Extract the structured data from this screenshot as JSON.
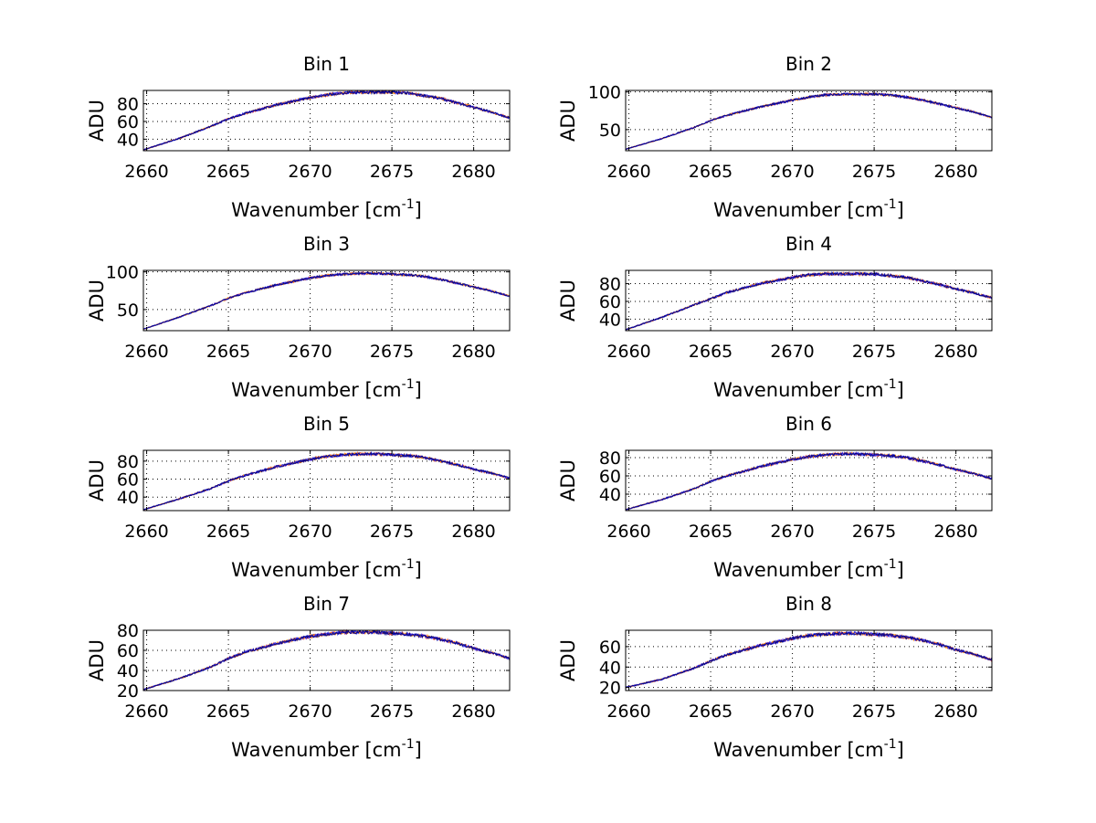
{
  "chart_data": [
    {
      "type": "line",
      "title": "Bin 1",
      "xlabel": "Wavenumber [cm",
      "xlabel_sup": "-1",
      "xlabel_end": "]",
      "ylabel": "ADU",
      "xlim": [
        2659.8,
        2682.2
      ],
      "ylim": [
        27,
        95
      ],
      "xticks": [
        2660,
        2665,
        2670,
        2675,
        2680
      ],
      "yticks": [
        40,
        60,
        80
      ],
      "grid": true,
      "series_colors": [
        "#e02020",
        "#ff8c00",
        "#1a1aff",
        "#000080"
      ],
      "x": [
        2659.8,
        2662,
        2664,
        2665,
        2666,
        2668,
        2670,
        2671,
        2672,
        2673,
        2674,
        2675,
        2676,
        2677,
        2678,
        2679,
        2680,
        2681,
        2682.2
      ],
      "values": [
        28,
        41,
        55,
        63,
        69,
        79,
        87,
        90,
        92,
        93,
        93,
        93,
        92,
        89,
        86,
        81,
        76,
        71,
        64
      ]
    },
    {
      "type": "line",
      "title": "Bin 2",
      "xlabel": "Wavenumber [cm",
      "xlabel_sup": "-1",
      "xlabel_end": "]",
      "ylabel": "ADU",
      "xlim": [
        2659.8,
        2682.2
      ],
      "ylim": [
        22,
        102
      ],
      "xticks": [
        2660,
        2665,
        2670,
        2675,
        2680
      ],
      "yticks": [
        50,
        100
      ],
      "grid": true,
      "series_colors": [
        "#e02020",
        "#ff8c00",
        "#1a1aff",
        "#000080"
      ],
      "x": [
        2659.8,
        2662,
        2664,
        2665,
        2666,
        2668,
        2670,
        2671,
        2672,
        2673,
        2674,
        2675,
        2676,
        2677,
        2678,
        2679,
        2680,
        2681,
        2682.2
      ],
      "values": [
        24,
        38,
        53,
        62,
        69,
        80,
        89,
        93,
        96,
        97,
        97,
        97,
        96,
        93,
        89,
        84,
        79,
        74,
        66
      ]
    },
    {
      "type": "line",
      "title": "Bin 3",
      "xlabel": "Wavenumber [cm",
      "xlabel_sup": "-1",
      "xlabel_end": "]",
      "ylabel": "ADU",
      "xlim": [
        2659.8,
        2682.2
      ],
      "ylim": [
        22,
        102
      ],
      "xticks": [
        2660,
        2665,
        2670,
        2675,
        2680
      ],
      "yticks": [
        50,
        100
      ],
      "grid": true,
      "series_colors": [
        "#e02020",
        "#ff8c00",
        "#1a1aff",
        "#000080"
      ],
      "x": [
        2659.8,
        2662,
        2664,
        2665,
        2666,
        2668,
        2670,
        2671,
        2672,
        2673,
        2674,
        2675,
        2676,
        2677,
        2678,
        2679,
        2680,
        2681,
        2682.2
      ],
      "values": [
        24,
        40,
        56,
        65,
        72,
        83,
        92,
        95,
        97,
        98,
        98,
        97,
        96,
        94,
        90,
        85,
        80,
        75,
        68
      ]
    },
    {
      "type": "line",
      "title": "Bin 4",
      "xlabel": "Wavenumber [cm",
      "xlabel_sup": "-1",
      "xlabel_end": "]",
      "ylabel": "ADU",
      "xlim": [
        2659.8,
        2682.2
      ],
      "ylim": [
        27,
        95
      ],
      "xticks": [
        2660,
        2665,
        2670,
        2675,
        2680
      ],
      "yticks": [
        40,
        60,
        80
      ],
      "grid": true,
      "series_colors": [
        "#e02020",
        "#ff8c00",
        "#1a1aff",
        "#000080"
      ],
      "x": [
        2659.8,
        2662,
        2664,
        2665,
        2666,
        2668,
        2670,
        2671,
        2672,
        2673,
        2674,
        2675,
        2676,
        2677,
        2678,
        2679,
        2680,
        2681,
        2682.2
      ],
      "values": [
        28,
        42,
        56,
        63,
        70,
        80,
        87,
        90,
        91,
        91,
        91,
        91,
        89,
        87,
        83,
        79,
        74,
        70,
        64
      ]
    },
    {
      "type": "line",
      "title": "Bin 5",
      "xlabel": "Wavenumber [cm",
      "xlabel_sup": "-1",
      "xlabel_end": "]",
      "ylabel": "ADU",
      "xlim": [
        2659.8,
        2682.2
      ],
      "ylim": [
        25,
        92
      ],
      "xticks": [
        2660,
        2665,
        2670,
        2675,
        2680
      ],
      "yticks": [
        40,
        60,
        80
      ],
      "grid": true,
      "series_colors": [
        "#e02020",
        "#ff8c00",
        "#1a1aff",
        "#000080"
      ],
      "x": [
        2659.8,
        2662,
        2664,
        2665,
        2666,
        2668,
        2670,
        2671,
        2672,
        2673,
        2674,
        2675,
        2676,
        2677,
        2678,
        2679,
        2680,
        2681,
        2682.2
      ],
      "values": [
        26,
        38,
        50,
        58,
        64,
        74,
        82,
        85,
        87,
        88,
        88,
        87,
        86,
        84,
        80,
        76,
        71,
        67,
        61
      ]
    },
    {
      "type": "line",
      "title": "Bin 6",
      "xlabel": "Wavenumber [cm",
      "xlabel_sup": "-1",
      "xlabel_end": "]",
      "ylabel": "ADU",
      "xlim": [
        2659.8,
        2682.2
      ],
      "ylim": [
        22,
        88
      ],
      "xticks": [
        2660,
        2665,
        2670,
        2675,
        2680
      ],
      "yticks": [
        40,
        60,
        80
      ],
      "grid": true,
      "series_colors": [
        "#e02020",
        "#ff8c00",
        "#1a1aff",
        "#000080"
      ],
      "x": [
        2659.8,
        2662,
        2664,
        2665,
        2666,
        2668,
        2670,
        2671,
        2672,
        2673,
        2674,
        2675,
        2676,
        2677,
        2678,
        2679,
        2680,
        2681,
        2682.2
      ],
      "values": [
        23,
        34,
        46,
        54,
        60,
        70,
        78,
        81,
        83,
        84,
        84,
        83,
        82,
        80,
        76,
        72,
        67,
        63,
        57
      ]
    },
    {
      "type": "line",
      "title": "Bin 7",
      "xlabel": "Wavenumber [cm",
      "xlabel_sup": "-1",
      "xlabel_end": "]",
      "ylabel": "ADU",
      "xlim": [
        2659.8,
        2682.2
      ],
      "ylim": [
        20,
        80
      ],
      "xticks": [
        2660,
        2665,
        2670,
        2675,
        2680
      ],
      "yticks": [
        20,
        40,
        60,
        80
      ],
      "grid": true,
      "series_colors": [
        "#e02020",
        "#ff8c00",
        "#1a1aff",
        "#000080"
      ],
      "x": [
        2659.8,
        2662,
        2664,
        2665,
        2666,
        2668,
        2670,
        2671,
        2672,
        2673,
        2674,
        2675,
        2676,
        2677,
        2678,
        2679,
        2680,
        2681,
        2682.2
      ],
      "values": [
        21,
        32,
        44,
        52,
        58,
        67,
        74,
        76,
        78,
        78,
        78,
        77,
        76,
        74,
        71,
        67,
        62,
        58,
        52
      ]
    },
    {
      "type": "line",
      "title": "Bin 8",
      "xlabel": "Wavenumber [cm",
      "xlabel_sup": "-1",
      "xlabel_end": "]",
      "ylabel": "ADU",
      "xlim": [
        2659.8,
        2682.2
      ],
      "ylim": [
        17,
        76
      ],
      "xticks": [
        2660,
        2665,
        2670,
        2675,
        2680
      ],
      "yticks": [
        20,
        40,
        60
      ],
      "grid": true,
      "series_colors": [
        "#e02020",
        "#ff8c00",
        "#1a1aff",
        "#000080"
      ],
      "x": [
        2659.8,
        2662,
        2664,
        2665,
        2666,
        2668,
        2670,
        2671,
        2672,
        2673,
        2674,
        2675,
        2676,
        2677,
        2678,
        2679,
        2680,
        2681,
        2682.2
      ],
      "values": [
        20,
        28,
        39,
        46,
        52,
        61,
        68,
        71,
        72,
        73,
        73,
        72,
        71,
        69,
        66,
        62,
        57,
        53,
        47
      ]
    }
  ]
}
